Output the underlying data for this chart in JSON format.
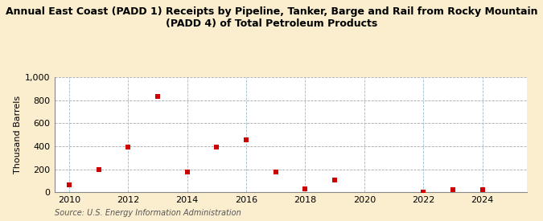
{
  "title_line1": "Annual East Coast (PADD 1) Receipts by Pipeline, Tanker, Barge and Rail from Rocky Mountain",
  "title_line2": "(PADD 4) of Total Petroleum Products",
  "ylabel": "Thousand Barrels",
  "source": "Source: U.S. Energy Information Administration",
  "years": [
    2010,
    2011,
    2012,
    2013,
    2014,
    2015,
    2016,
    2017,
    2018,
    2019,
    2022,
    2023,
    2024
  ],
  "values": [
    65,
    195,
    390,
    835,
    175,
    395,
    455,
    175,
    30,
    110,
    5,
    25,
    20
  ],
  "xlim": [
    2009.5,
    2025.5
  ],
  "ylim": [
    0,
    1000
  ],
  "yticks": [
    0,
    200,
    400,
    600,
    800,
    1000
  ],
  "xticks": [
    2010,
    2012,
    2014,
    2016,
    2018,
    2020,
    2022,
    2024
  ],
  "marker_color": "#cc0000",
  "marker": "s",
  "marker_size": 4,
  "bg_color": "#faeece",
  "plot_bg_color": "#ffffff",
  "grid_color_x": "#99bbcc",
  "grid_color_y": "#aaaaaa",
  "title_fontsize": 9,
  "axis_fontsize": 8,
  "source_fontsize": 7
}
